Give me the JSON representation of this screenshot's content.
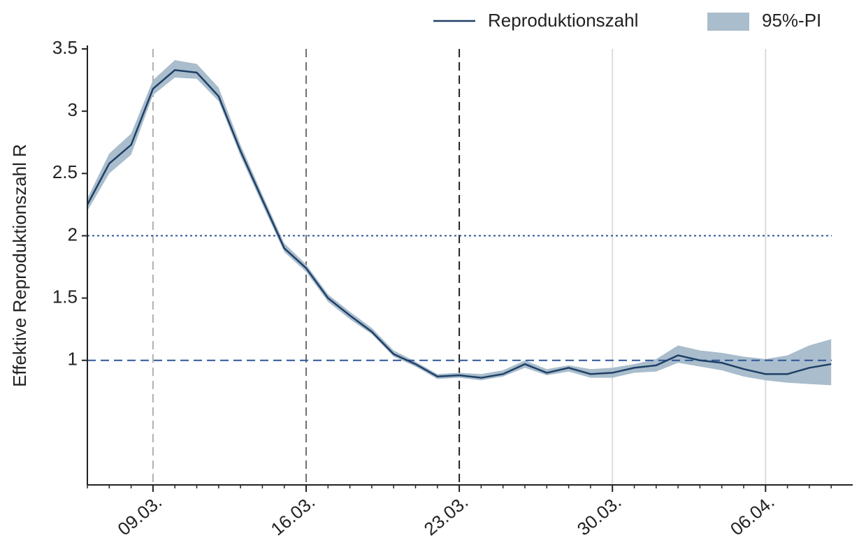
{
  "chart_data": {
    "type": "line",
    "y_label": "Effektive Reproduktionszahl R",
    "x": [
      "06.03.",
      "07.03.",
      "08.03.",
      "09.03.",
      "10.03.",
      "11.03.",
      "12.03.",
      "13.03.",
      "14.03.",
      "15.03.",
      "16.03.",
      "17.03.",
      "18.03.",
      "19.03.",
      "20.03.",
      "21.03.",
      "22.03.",
      "23.03.",
      "24.03.",
      "25.03.",
      "26.03.",
      "27.03.",
      "28.03.",
      "29.03.",
      "30.03.",
      "31.03.",
      "01.04.",
      "02.04.",
      "03.04.",
      "04.04.",
      "05.04.",
      "06.04.",
      "07.04.",
      "08.04.",
      "09.04."
    ],
    "series": [
      {
        "name": "Reproduktionszahl",
        "color": "#1f3f66",
        "values": [
          2.25,
          2.58,
          2.73,
          3.18,
          3.33,
          3.31,
          3.12,
          2.68,
          2.29,
          1.9,
          1.74,
          1.5,
          1.36,
          1.23,
          1.05,
          0.97,
          0.87,
          0.88,
          0.86,
          0.89,
          0.97,
          0.9,
          0.94,
          0.89,
          0.9,
          0.94,
          0.96,
          1.04,
          1.0,
          0.98,
          0.93,
          0.89,
          0.89,
          0.94,
          0.97
        ]
      }
    ],
    "interval": {
      "name": "95%-PI",
      "color": "#a9bdcc",
      "lower": [
        2.2,
        2.5,
        2.65,
        3.13,
        3.27,
        3.26,
        3.08,
        2.64,
        2.25,
        1.87,
        1.71,
        1.47,
        1.33,
        1.21,
        1.03,
        0.95,
        0.85,
        0.86,
        0.84,
        0.87,
        0.94,
        0.88,
        0.91,
        0.86,
        0.86,
        0.9,
        0.91,
        0.98,
        0.95,
        0.92,
        0.87,
        0.84,
        0.82,
        0.81,
        0.8
      ],
      "upper": [
        2.3,
        2.66,
        2.82,
        3.25,
        3.41,
        3.38,
        3.19,
        2.73,
        2.33,
        1.94,
        1.77,
        1.53,
        1.39,
        1.26,
        1.08,
        0.99,
        0.89,
        0.9,
        0.89,
        0.92,
        1.0,
        0.93,
        0.96,
        0.93,
        0.94,
        0.97,
        1.01,
        1.12,
        1.08,
        1.06,
        1.03,
        1.01,
        1.04,
        1.12,
        1.17
      ]
    },
    "ylim": [
      0,
      3.5
    ],
    "yticks": [
      1,
      1.5,
      2,
      2.5,
      3,
      3.5
    ],
    "xticks": [
      "09.03.",
      "16.03.",
      "23.03.",
      "30.03.",
      "06.04."
    ],
    "hlines": [
      {
        "value": 2,
        "color": "#2f5597",
        "dash": "3,4"
      },
      {
        "value": 1,
        "color": "#2f5597",
        "dash": "12,7"
      }
    ],
    "vlines": [
      {
        "x": "09.03.",
        "color": "#b0b0b0",
        "dash": "12,7"
      },
      {
        "x": "16.03.",
        "color": "#707070",
        "dash": "12,7"
      },
      {
        "x": "23.03.",
        "color": "#202020",
        "dash": "12,7"
      },
      {
        "x": "30.03.",
        "color": "#dcdcdc",
        "dash": "none"
      },
      {
        "x": "06.04.",
        "color": "#dcdcdc",
        "dash": "none"
      }
    ],
    "legend": "top-right"
  }
}
